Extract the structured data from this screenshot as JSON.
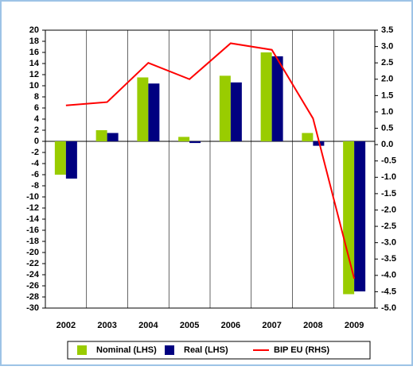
{
  "chart_data": {
    "type": "bar",
    "categories": [
      "2002",
      "2003",
      "2004",
      "2005",
      "2006",
      "2007",
      "2008",
      "2009"
    ],
    "series": [
      {
        "name": "Nominal (LHS)",
        "color": "#99cc00",
        "values": [
          -6,
          2,
          11.5,
          0.8,
          11.8,
          16,
          1.5,
          -27.5
        ]
      },
      {
        "name": "Real (LHS)",
        "color": "#000080",
        "values": [
          -6.7,
          1.5,
          10.4,
          -0.3,
          10.6,
          15.3,
          -0.8,
          -27
        ]
      },
      {
        "name": "BIP EU (RHS)",
        "color": "#ff0000",
        "type": "line",
        "axis": "y2",
        "values": [
          1.2,
          1.3,
          2.5,
          2.0,
          3.1,
          2.9,
          0.8,
          -4.1
        ]
      }
    ],
    "ylim": [
      -30,
      20
    ],
    "yticks": [
      -30,
      -28,
      -26,
      -24,
      -22,
      -20,
      -18,
      -16,
      -14,
      -12,
      -10,
      -8,
      -6,
      -4,
      -2,
      0,
      2,
      4,
      6,
      8,
      10,
      12,
      14,
      16,
      18,
      20
    ],
    "y2lim": [
      -5,
      3.5
    ],
    "y2ticks": [
      {
        "value": -5,
        "label": "-5.0"
      },
      -4.5,
      {
        "value": -4,
        "label": "-4.0"
      },
      -3.5,
      {
        "value": -3,
        "label": "-3.0"
      },
      -2.5,
      {
        "value": -2,
        "label": "-2.0"
      },
      -1.5,
      {
        "value": -1,
        "label": "-1.0"
      },
      -0.5,
      {
        "value": 0,
        "label": "0.0"
      },
      0.5,
      {
        "value": 1,
        "label": "1.0"
      },
      1.5,
      {
        "value": 2,
        "label": "2.0"
      },
      2.5,
      {
        "value": 3,
        "label": "3.0"
      },
      3.5
    ],
    "legend": "bottom"
  }
}
